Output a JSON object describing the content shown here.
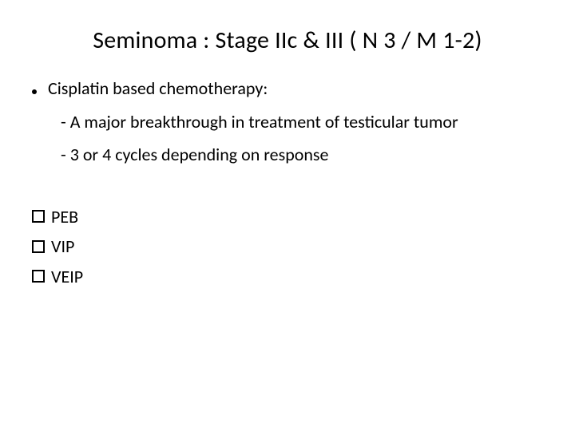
{
  "title": "Seminoma : Stage IIc & III ( N 3 / M 1-2)",
  "bullet": {
    "text": "Cisplatin based chemotherapy:"
  },
  "sublines": [
    "- A major breakthrough in treatment of testicular tumor",
    "- 3 or 4 cycles depending on response"
  ],
  "checks": [
    "PEB",
    "VIP",
    "VEIP"
  ],
  "colors": {
    "background": "#ffffff",
    "text": "#000000"
  },
  "fontsizes": {
    "title": 30,
    "body": 22
  }
}
